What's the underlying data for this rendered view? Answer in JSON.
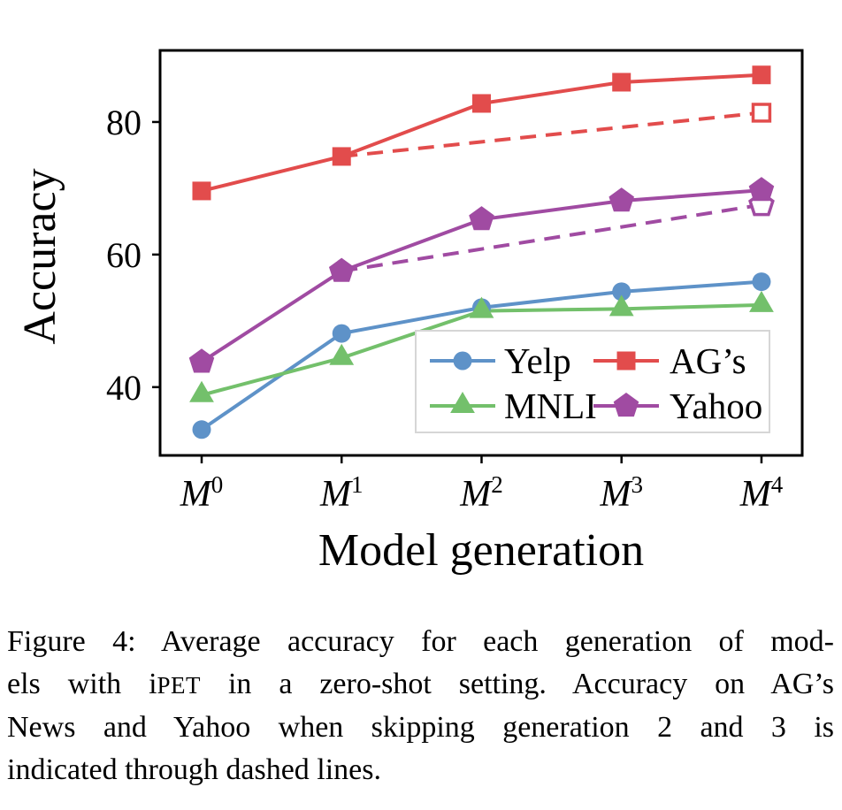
{
  "figure": {
    "caption": {
      "line1": "Figure 4: Average accuracy for each generation of mod-",
      "line2_pre": "els with i",
      "line2_smallcaps": "PET",
      "line2_post": " in a zero-shot setting. Accuracy on AG’s",
      "line3": "News and Yahoo when skipping generation 2 and 3 is",
      "line4": "indicated through dashed lines."
    }
  },
  "chart_data": {
    "type": "line",
    "title": "",
    "xlabel": "Model generation",
    "ylabel": "Accuracy",
    "x_tick_labels": [
      {
        "base": "M",
        "sup": "0"
      },
      {
        "base": "M",
        "sup": "1"
      },
      {
        "base": "M",
        "sup": "2"
      },
      {
        "base": "M",
        "sup": "3"
      },
      {
        "base": "M",
        "sup": "4"
      }
    ],
    "yticks": [
      {
        "value": 40,
        "label": "40"
      },
      {
        "value": 60,
        "label": "60"
      },
      {
        "value": 80,
        "label": "80"
      }
    ],
    "xlim": [
      -0.297,
      4.291
    ],
    "ylim": [
      29.7,
      90.8
    ],
    "grid": false,
    "axis_color": "#000000",
    "series": [
      {
        "name": "Yelp",
        "color": "#5e92c8",
        "marker": "circle",
        "style": "solid",
        "marker_at": "all",
        "x": [
          0,
          1,
          2,
          3,
          4
        ],
        "values": [
          33.6,
          48.1,
          52.0,
          54.4,
          55.9
        ]
      },
      {
        "name": "MNLI",
        "color": "#73c06b",
        "marker": "triangle",
        "style": "solid",
        "marker_at": "all",
        "x": [
          0,
          1,
          2,
          3,
          4
        ],
        "values": [
          38.8,
          44.4,
          51.5,
          51.8,
          52.4
        ]
      },
      {
        "name": "AG’s",
        "color": "#e24c4c",
        "marker": "square",
        "style": "solid",
        "marker_at": "all",
        "x": [
          0,
          1,
          2,
          3,
          4
        ],
        "values": [
          69.6,
          74.8,
          82.8,
          86.0,
          87.1
        ]
      },
      {
        "name": "Yahoo",
        "color": "#a04ba2",
        "marker": "pentagon",
        "style": "solid",
        "marker_at": "all",
        "x": [
          0,
          1,
          2,
          3,
          4
        ],
        "values": [
          43.8,
          57.5,
          65.3,
          68.1,
          69.7
        ]
      },
      {
        "name": "AG’s (skipping generation 2 and 3)",
        "color": "#e24c4c",
        "marker": "square-open",
        "style": "dashed",
        "marker_at": "last",
        "x": [
          1,
          4
        ],
        "values": [
          74.8,
          81.4
        ]
      },
      {
        "name": "Yahoo (skipping generation 2 and 3)",
        "color": "#a04ba2",
        "marker": "pentagon-open",
        "style": "dashed",
        "marker_at": "last",
        "x": [
          1,
          4
        ],
        "values": [
          57.5,
          67.5
        ]
      }
    ],
    "legend": {
      "position": "lower-right-inside",
      "background": "#ffffff",
      "border_color": "#d6d6d6",
      "entries": [
        {
          "label": "Yelp",
          "series_index": 0
        },
        {
          "label": "AG’s",
          "series_index": 2
        },
        {
          "label": "MNLI",
          "series_index": 1
        },
        {
          "label": "Yahoo",
          "series_index": 3
        }
      ]
    }
  }
}
